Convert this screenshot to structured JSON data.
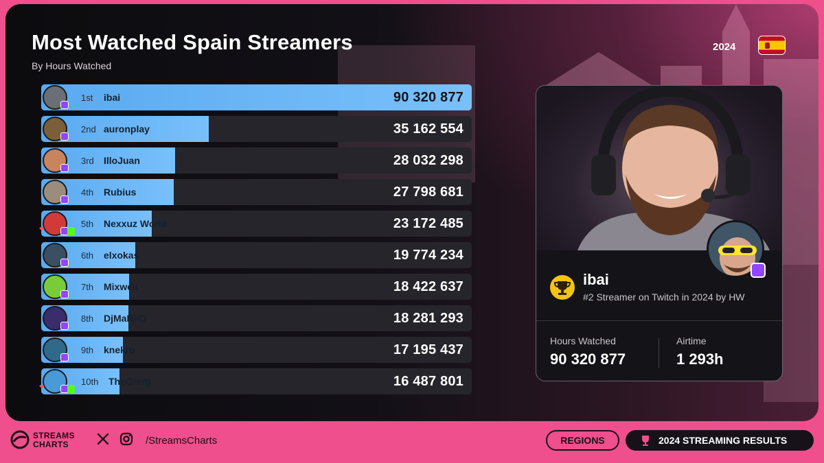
{
  "header": {
    "title": "Most Watched Spain Streamers",
    "subtitle": "By Hours Watched",
    "year": "2024",
    "flag_icon": "spain-flag-icon"
  },
  "chart_data": {
    "type": "bar",
    "orientation": "horizontal",
    "title": "Most Watched Spain Streamers",
    "subtitle": "By Hours Watched",
    "xlim": [
      0,
      90320877
    ],
    "colors": {
      "bar": "#6db6f7",
      "track": "#25252b"
    },
    "rows": [
      {
        "rank": "1st",
        "name": "ibai",
        "value": 90320877,
        "value_label": "90 320 877",
        "platforms": [
          "twitch"
        ]
      },
      {
        "rank": "2nd",
        "name": "auronplay",
        "value": 35162554,
        "value_label": "35 162 554",
        "platforms": [
          "twitch"
        ]
      },
      {
        "rank": "3rd",
        "name": "IlloJuan",
        "value": 28032298,
        "value_label": "28 032 298",
        "platforms": [
          "twitch"
        ]
      },
      {
        "rank": "4th",
        "name": "Rubius",
        "value": 27798681,
        "value_label": "27 798 681",
        "platforms": [
          "twitch"
        ]
      },
      {
        "rank": "5th",
        "name": "Nexxuz World",
        "value": 23172485,
        "value_label": "23 172 485",
        "platforms": [
          "twitch",
          "kick"
        ]
      },
      {
        "rank": "6th",
        "name": "elxokas",
        "value": 19774234,
        "value_label": "19 774 234",
        "platforms": [
          "twitch"
        ]
      },
      {
        "rank": "7th",
        "name": "Mixwell",
        "value": 18422637,
        "value_label": "18 422 637",
        "platforms": [
          "twitch"
        ]
      },
      {
        "rank": "8th",
        "name": "DjMaRiiO",
        "value": 18281293,
        "value_label": "18 281 293",
        "platforms": [
          "twitch"
        ]
      },
      {
        "rank": "9th",
        "name": "knekro",
        "value": 17195437,
        "value_label": "17 195 437",
        "platforms": [
          "twitch"
        ]
      },
      {
        "rank": "10th",
        "name": "TheGrefg",
        "value": 16487801,
        "value_label": "16 487 801",
        "platforms": [
          "twitch",
          "kick"
        ]
      }
    ]
  },
  "profile": {
    "name": "ibai",
    "description": "#2 Streamer on Twitch in 2024 by HW",
    "hours_label": "Hours Watched",
    "hours_value": "90 320 877",
    "airtime_label": "Airtime",
    "airtime_value": "1 293h",
    "badge_icon": "trophy-icon",
    "platform_icon": "twitch-icon"
  },
  "footer": {
    "brand_line1": "STREAMS",
    "brand_line2": "CHARTS",
    "handle": "/StreamsCharts",
    "regions_label": "REGIONS",
    "results_label": "2024 STREAMING RESULTS"
  },
  "colors": {
    "accent_pink": "#ef4f8c",
    "twitch": "#9146ff",
    "kick": "#53fc18",
    "gold": "#f3c316"
  }
}
